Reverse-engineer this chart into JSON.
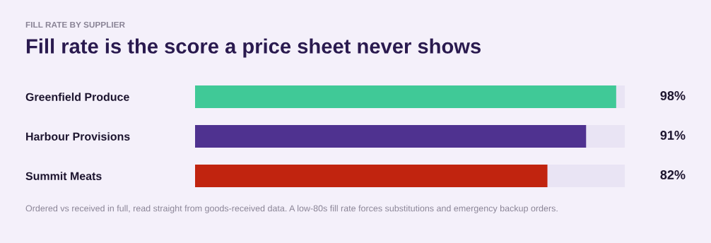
{
  "chart_data": {
    "type": "bar",
    "orientation": "horizontal",
    "subtitle": "FILL RATE BY SUPPLIER",
    "title": "Fill rate is the score a price sheet never shows",
    "categories": [
      "Greenfield Produce",
      "Harbour Provisions",
      "Summit Meats"
    ],
    "values": [
      98,
      91,
      82
    ],
    "colors": [
      "#40c997",
      "#4f3290",
      "#c1240f"
    ],
    "value_labels": [
      "98%",
      "91%",
      "82%"
    ],
    "xlim": [
      0,
      100
    ],
    "tick_labels": "y",
    "grid": false,
    "legend": false,
    "annotations": [
      "Ordered vs received in full, read straight from goods-received data. A low-80s fill rate forces substitutions and emergency backup orders."
    ]
  }
}
